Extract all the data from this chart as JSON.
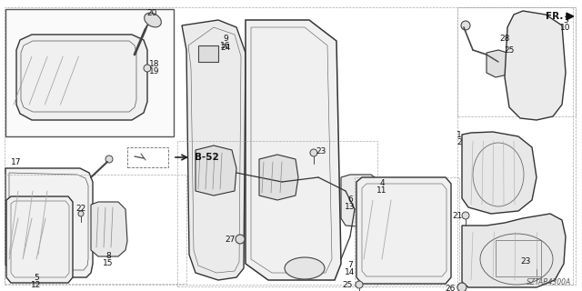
{
  "bg_color": "#ffffff",
  "fg_color": "#111111",
  "diagram_code": "SZTAB4300A",
  "fr_label": "FR.",
  "b52_label": "B-52",
  "figsize": [
    6.4,
    3.2
  ],
  "dpi": 100
}
